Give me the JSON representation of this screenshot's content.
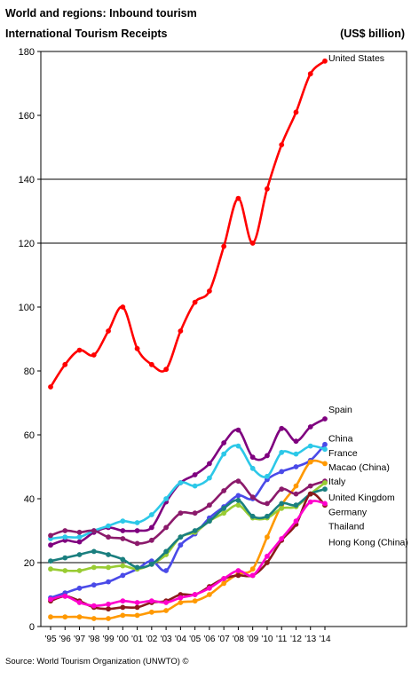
{
  "header": {
    "title": "World and regions: Inbound tourism",
    "subtitle": "International Tourism Receipts",
    "unit": "(US$ billion)"
  },
  "source": "Source: World Tourism Organization (UNWTO) ©",
  "chart_data": {
    "type": "line",
    "title": "International Tourism Receipts",
    "ylim": [
      0,
      180
    ],
    "yticks": [
      0,
      20,
      40,
      60,
      80,
      100,
      120,
      140,
      160,
      180
    ],
    "gridlines": [
      20,
      120,
      140
    ],
    "categories": [
      "'95",
      "'96",
      "'97",
      "'98",
      "'99",
      "'00",
      "'01",
      "'02",
      "'03",
      "'04",
      "'05",
      "'06",
      "'07",
      "'08",
      "'09",
      "'10",
      "'11",
      "'12",
      "'13",
      "'14"
    ],
    "series": [
      {
        "name": "United States",
        "color": "#ff0000",
        "label_y": 178,
        "values": [
          75,
          82,
          86.5,
          85,
          92.5,
          100,
          87,
          82,
          80.5,
          92.5,
          101.5,
          105,
          119,
          134,
          120,
          137,
          150.8,
          161,
          173,
          177
        ]
      },
      {
        "name": "Spain",
        "color": "#7f007f",
        "label_y": 68,
        "values": [
          25.5,
          27,
          26.5,
          29.5,
          31,
          30,
          30,
          31,
          39,
          45,
          47.5,
          51,
          57.5,
          61.5,
          53,
          53.5,
          62,
          58,
          62.5,
          65
        ]
      },
      {
        "name": "China",
        "color": "#4a4ae8",
        "label_y": 59,
        "values": [
          9,
          10.5,
          12,
          13,
          14,
          16,
          18,
          20.5,
          17.5,
          25.5,
          29,
          34,
          37.5,
          41,
          40,
          46,
          48.5,
          50,
          52,
          57
        ]
      },
      {
        "name": "France",
        "color": "#2dc8e8",
        "label_y": 54.5,
        "values": [
          27.5,
          28,
          28,
          30,
          31.5,
          33,
          32.5,
          35,
          40,
          45,
          44,
          46.5,
          54,
          56.5,
          49.5,
          47,
          54.5,
          54,
          56.5,
          55.5
        ]
      },
      {
        "name": "Macao (China)",
        "color": "#ff9900",
        "label_y": 50,
        "values": [
          3,
          3,
          3,
          2.5,
          2.5,
          3.5,
          3.5,
          4.5,
          5,
          7.5,
          8,
          10,
          13.5,
          16.5,
          18,
          28,
          38,
          44,
          51.5,
          51
        ]
      },
      {
        "name": "Italy",
        "color": "#8b1a6b",
        "label_y": 45.5,
        "values": [
          28.5,
          30,
          29.5,
          30,
          28,
          27.5,
          26,
          27,
          31,
          35.5,
          35.5,
          38,
          42.5,
          45.5,
          40.5,
          38.5,
          43,
          41.5,
          44,
          45.5
        ]
      },
      {
        "name": "United Kingdom",
        "color": "#99cc33",
        "label_y": 40.5,
        "values": [
          18,
          17.5,
          17.5,
          18.5,
          18.5,
          19,
          18,
          19.5,
          22.5,
          28,
          29.5,
          33,
          35.5,
          38,
          34,
          34,
          37,
          37.5,
          41.5,
          45
        ]
      },
      {
        "name": "Germany",
        "color": "#1a7f7f",
        "label_y": 36,
        "values": [
          20.5,
          21.5,
          22.5,
          23.5,
          22.5,
          21,
          18.5,
          19.5,
          23.5,
          28,
          30,
          33,
          37,
          39.5,
          34.5,
          34.5,
          38.5,
          38,
          41.5,
          43
        ]
      },
      {
        "name": "Thailand",
        "color": "#8b1a1a",
        "label_y": 31.5,
        "values": [
          8,
          9.5,
          8,
          6,
          5.5,
          6,
          6,
          7.5,
          8,
          10,
          10,
          12.5,
          15,
          16,
          16,
          20,
          27,
          32,
          41.5,
          38
        ]
      },
      {
        "name": "Hong Kong (China)",
        "color": "#ff00cc",
        "label_y": 26.5,
        "values": [
          8.5,
          9.5,
          7.5,
          6.5,
          7,
          8,
          7.5,
          8,
          7.5,
          9,
          10,
          12,
          15,
          17.5,
          16,
          22,
          27.5,
          33,
          39,
          38.5
        ]
      }
    ]
  }
}
